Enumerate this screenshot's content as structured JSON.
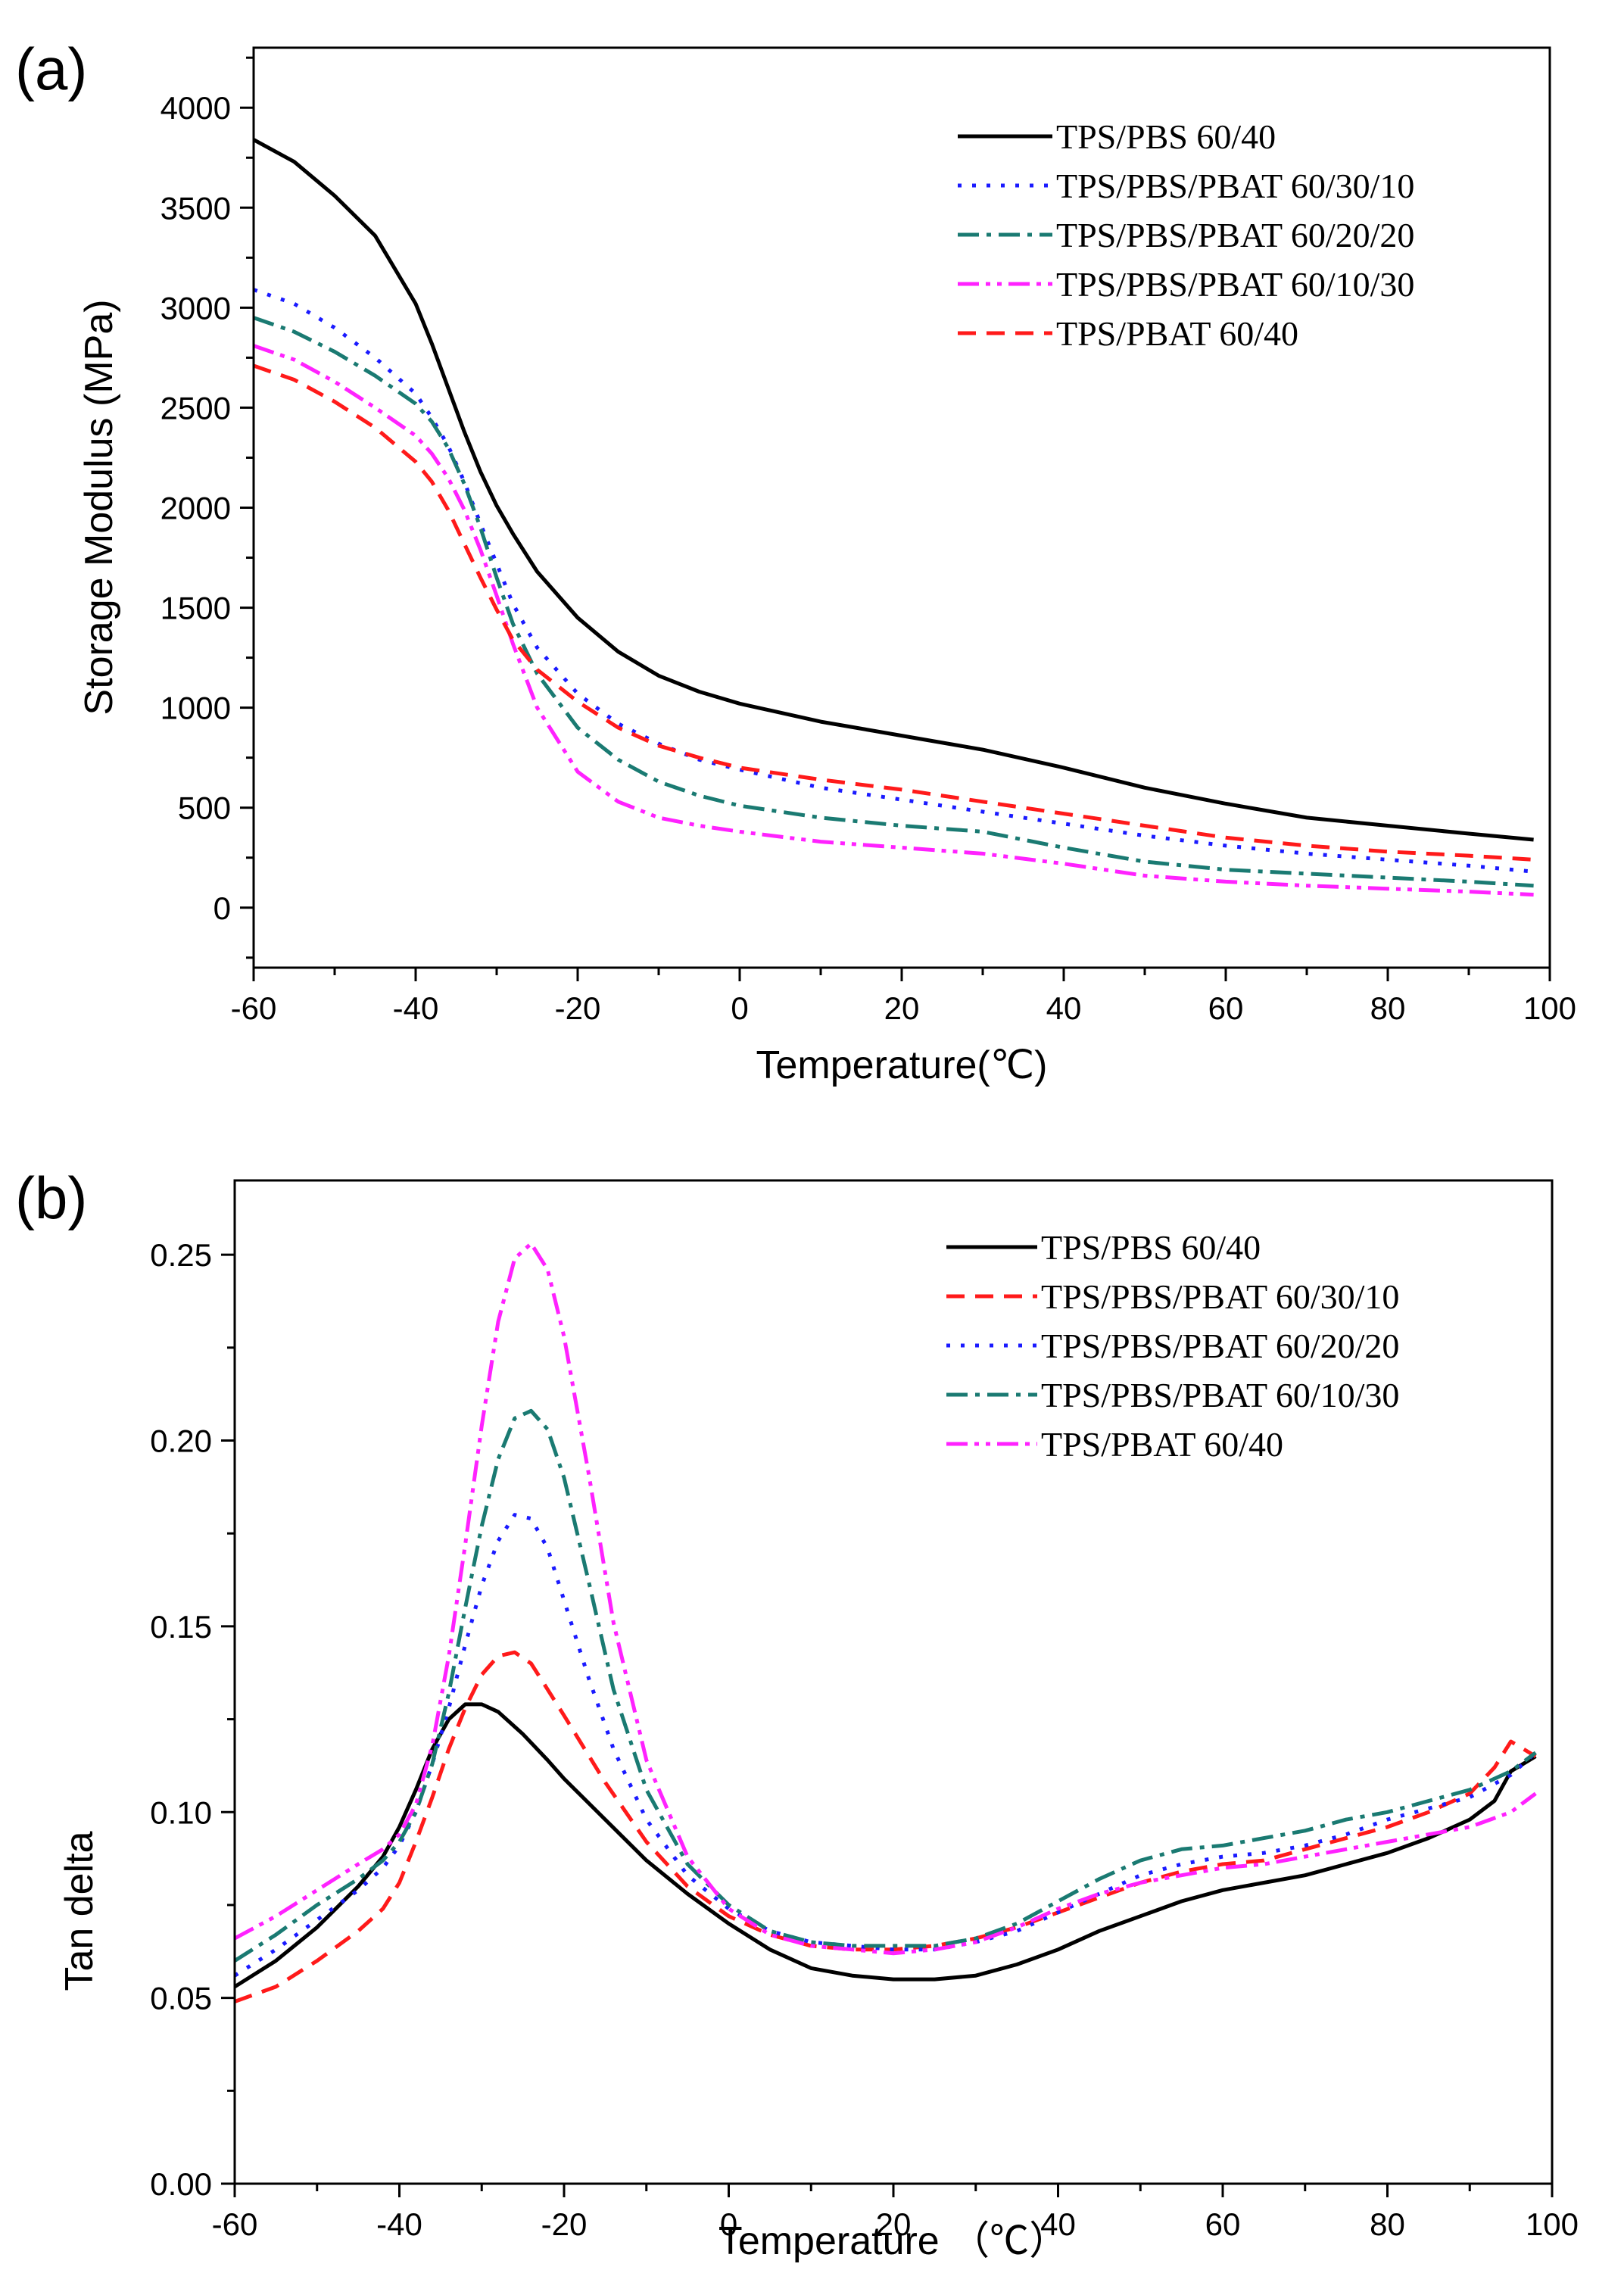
{
  "chart_data": [
    {
      "type": "line",
      "panel_label": "(a)",
      "title": "",
      "xlabel": "Temperature(℃)",
      "ylabel": "Storage Modulus (MPa)",
      "xlim": [
        -60,
        100
      ],
      "ylim": [
        -300,
        4300
      ],
      "xticks": [
        -60,
        -40,
        -20,
        0,
        20,
        40,
        60,
        80,
        100
      ],
      "yticks": [
        0,
        500,
        1000,
        1500,
        2000,
        2500,
        3000,
        3500,
        4000
      ],
      "legend_position": "top-right",
      "series": [
        {
          "name": "TPS/PBS 60/40",
          "color": "#000000",
          "dash": "solid",
          "x": [
            -60,
            -55,
            -50,
            -45,
            -40,
            -38,
            -36,
            -34,
            -32,
            -30,
            -28,
            -25,
            -20,
            -15,
            -10,
            -5,
            0,
            10,
            20,
            30,
            40,
            50,
            60,
            70,
            80,
            90,
            98
          ],
          "y": [
            3840,
            3730,
            3560,
            3360,
            3020,
            2820,
            2600,
            2380,
            2180,
            2010,
            1870,
            1680,
            1450,
            1280,
            1160,
            1080,
            1020,
            930,
            860,
            790,
            700,
            600,
            520,
            450,
            410,
            370,
            340
          ]
        },
        {
          "name": "TPS/PBS/PBAT 60/30/10",
          "color": "#1a1aff",
          "dash": "dot",
          "x": [
            -60,
            -55,
            -50,
            -45,
            -40,
            -38,
            -36,
            -34,
            -32,
            -30,
            -28,
            -25,
            -20,
            -15,
            -10,
            -5,
            0,
            10,
            20,
            30,
            40,
            50,
            60,
            70,
            80,
            90,
            98
          ],
          "y": [
            3090,
            3020,
            2900,
            2750,
            2570,
            2450,
            2310,
            2130,
            1920,
            1720,
            1520,
            1300,
            1070,
            920,
            820,
            740,
            690,
            600,
            540,
            480,
            420,
            360,
            310,
            270,
            240,
            210,
            180
          ]
        },
        {
          "name": "TPS/PBS/PBAT 60/20/20",
          "color": "#1a7a72",
          "dash": "dashdot",
          "x": [
            -60,
            -55,
            -50,
            -45,
            -40,
            -38,
            -36,
            -34,
            -32,
            -30,
            -28,
            -25,
            -20,
            -15,
            -10,
            -5,
            0,
            10,
            20,
            30,
            40,
            50,
            60,
            70,
            80,
            90,
            98
          ],
          "y": [
            2950,
            2880,
            2780,
            2660,
            2520,
            2430,
            2300,
            2120,
            1900,
            1650,
            1420,
            1170,
            900,
            740,
            630,
            560,
            510,
            450,
            410,
            380,
            300,
            230,
            190,
            170,
            150,
            130,
            110
          ]
        },
        {
          "name": "TPS/PBS/PBAT 60/10/30",
          "color": "#ff22ff",
          "dash": "dashdotdot",
          "x": [
            -60,
            -55,
            -50,
            -45,
            -40,
            -38,
            -36,
            -34,
            -32,
            -30,
            -28,
            -25,
            -20,
            -15,
            -10,
            -5,
            0,
            10,
            20,
            30,
            40,
            50,
            60,
            70,
            80,
            90,
            98
          ],
          "y": [
            2810,
            2740,
            2630,
            2500,
            2360,
            2270,
            2150,
            1990,
            1790,
            1560,
            1320,
            1000,
            680,
            530,
            450,
            410,
            380,
            330,
            300,
            270,
            220,
            160,
            130,
            110,
            95,
            80,
            65
          ]
        },
        {
          "name": "TPS/PBAT 60/40",
          "color": "#ff1a1a",
          "dash": "dash",
          "x": [
            -60,
            -55,
            -50,
            -45,
            -40,
            -38,
            -36,
            -34,
            -32,
            -30,
            -28,
            -25,
            -20,
            -15,
            -10,
            -5,
            0,
            10,
            20,
            30,
            40,
            50,
            60,
            70,
            80,
            90,
            98
          ],
          "y": [
            2710,
            2640,
            2530,
            2400,
            2230,
            2130,
            1990,
            1820,
            1650,
            1490,
            1340,
            1190,
            1030,
            900,
            810,
            750,
            700,
            640,
            590,
            530,
            470,
            410,
            350,
            310,
            280,
            260,
            240
          ]
        }
      ]
    },
    {
      "type": "line",
      "panel_label": "(b)",
      "title": "",
      "xlabel": "Temperature （℃）",
      "ylabel": "Tan delta",
      "xlim": [
        -60,
        100
      ],
      "ylim": [
        0.0,
        0.27
      ],
      "xticks": [
        -60,
        -40,
        -20,
        0,
        20,
        40,
        60,
        80,
        100
      ],
      "yticks": [
        0.0,
        0.05,
        0.1,
        0.15,
        0.2,
        0.25
      ],
      "ytick_labels": [
        "0.00",
        "0.05",
        "0.10",
        "0.15",
        "0.20",
        "0.25"
      ],
      "legend_position": "top-right",
      "series": [
        {
          "name": "TPS/PBS 60/40",
          "color": "#000000",
          "dash": "solid",
          "x": [
            -60,
            -55,
            -50,
            -45,
            -42,
            -40,
            -38,
            -36,
            -34,
            -32,
            -30,
            -28,
            -25,
            -22,
            -20,
            -15,
            -10,
            -5,
            0,
            5,
            10,
            15,
            20,
            25,
            30,
            35,
            40,
            45,
            50,
            55,
            60,
            65,
            70,
            75,
            80,
            85,
            90,
            93,
            95,
            98
          ],
          "y": [
            0.053,
            0.06,
            0.069,
            0.08,
            0.088,
            0.096,
            0.106,
            0.117,
            0.125,
            0.129,
            0.129,
            0.127,
            0.121,
            0.114,
            0.109,
            0.098,
            0.087,
            0.078,
            0.07,
            0.063,
            0.058,
            0.056,
            0.055,
            0.055,
            0.056,
            0.059,
            0.063,
            0.068,
            0.072,
            0.076,
            0.079,
            0.081,
            0.083,
            0.086,
            0.089,
            0.093,
            0.098,
            0.103,
            0.111,
            0.115
          ]
        },
        {
          "name": "TPS/PBS/PBAT 60/30/10",
          "color": "#ff1a1a",
          "dash": "dash",
          "x": [
            -60,
            -55,
            -50,
            -45,
            -42,
            -40,
            -38,
            -36,
            -34,
            -32,
            -30,
            -28,
            -26,
            -24,
            -22,
            -20,
            -15,
            -10,
            -5,
            0,
            5,
            10,
            15,
            20,
            25,
            30,
            35,
            40,
            45,
            50,
            55,
            60,
            65,
            70,
            75,
            80,
            85,
            90,
            93,
            95,
            98
          ],
          "y": [
            0.049,
            0.053,
            0.06,
            0.068,
            0.074,
            0.081,
            0.092,
            0.104,
            0.117,
            0.128,
            0.137,
            0.142,
            0.143,
            0.14,
            0.133,
            0.126,
            0.108,
            0.092,
            0.08,
            0.072,
            0.067,
            0.064,
            0.063,
            0.063,
            0.064,
            0.066,
            0.069,
            0.073,
            0.077,
            0.081,
            0.084,
            0.086,
            0.087,
            0.09,
            0.093,
            0.096,
            0.1,
            0.105,
            0.112,
            0.119,
            0.115
          ]
        },
        {
          "name": "TPS/PBS/PBAT 60/20/20",
          "color": "#1a1aff",
          "dash": "dot",
          "x": [
            -60,
            -55,
            -50,
            -45,
            -42,
            -40,
            -38,
            -36,
            -34,
            -32,
            -30,
            -28,
            -26,
            -24,
            -22,
            -20,
            -17,
            -14,
            -10,
            -5,
            0,
            5,
            10,
            15,
            20,
            25,
            30,
            35,
            40,
            45,
            50,
            55,
            60,
            65,
            70,
            75,
            80,
            85,
            90,
            95,
            98
          ],
          "y": [
            0.056,
            0.063,
            0.071,
            0.079,
            0.085,
            0.091,
            0.1,
            0.113,
            0.128,
            0.145,
            0.161,
            0.173,
            0.18,
            0.179,
            0.171,
            0.157,
            0.136,
            0.117,
            0.098,
            0.083,
            0.074,
            0.068,
            0.065,
            0.064,
            0.063,
            0.063,
            0.065,
            0.068,
            0.073,
            0.078,
            0.083,
            0.086,
            0.088,
            0.089,
            0.091,
            0.094,
            0.098,
            0.101,
            0.104,
            0.11,
            0.116
          ]
        },
        {
          "name": "TPS/PBS/PBAT 60/10/30",
          "color": "#1a7a72",
          "dash": "dashdot",
          "x": [
            -60,
            -55,
            -50,
            -45,
            -42,
            -40,
            -38,
            -36,
            -34,
            -32,
            -30,
            -28,
            -26,
            -24,
            -22,
            -20,
            -17,
            -14,
            -10,
            -5,
            0,
            5,
            10,
            15,
            20,
            25,
            30,
            35,
            40,
            45,
            50,
            55,
            60,
            65,
            70,
            75,
            80,
            85,
            90,
            95,
            98
          ],
          "y": [
            0.06,
            0.067,
            0.075,
            0.082,
            0.087,
            0.092,
            0.1,
            0.113,
            0.132,
            0.155,
            0.177,
            0.195,
            0.206,
            0.208,
            0.203,
            0.19,
            0.162,
            0.133,
            0.106,
            0.086,
            0.075,
            0.068,
            0.065,
            0.064,
            0.064,
            0.064,
            0.066,
            0.07,
            0.076,
            0.082,
            0.087,
            0.09,
            0.091,
            0.093,
            0.095,
            0.098,
            0.1,
            0.103,
            0.106,
            0.111,
            0.116
          ]
        },
        {
          "name": "TPS/PBAT 60/40",
          "color": "#ff22ff",
          "dash": "dashdotdot",
          "x": [
            -60,
            -55,
            -50,
            -45,
            -42,
            -40,
            -38,
            -36,
            -34,
            -32,
            -30,
            -28,
            -26,
            -24,
            -22,
            -20,
            -17,
            -14,
            -10,
            -5,
            0,
            5,
            10,
            15,
            20,
            25,
            30,
            35,
            40,
            45,
            50,
            55,
            60,
            65,
            70,
            75,
            80,
            85,
            90,
            95,
            98
          ],
          "y": [
            0.066,
            0.072,
            0.079,
            0.086,
            0.09,
            0.094,
            0.102,
            0.118,
            0.142,
            0.172,
            0.204,
            0.232,
            0.249,
            0.253,
            0.246,
            0.228,
            0.191,
            0.151,
            0.114,
            0.088,
            0.074,
            0.067,
            0.064,
            0.063,
            0.062,
            0.063,
            0.065,
            0.069,
            0.074,
            0.078,
            0.081,
            0.083,
            0.085,
            0.086,
            0.088,
            0.09,
            0.092,
            0.094,
            0.096,
            0.1,
            0.105
          ]
        }
      ]
    }
  ]
}
